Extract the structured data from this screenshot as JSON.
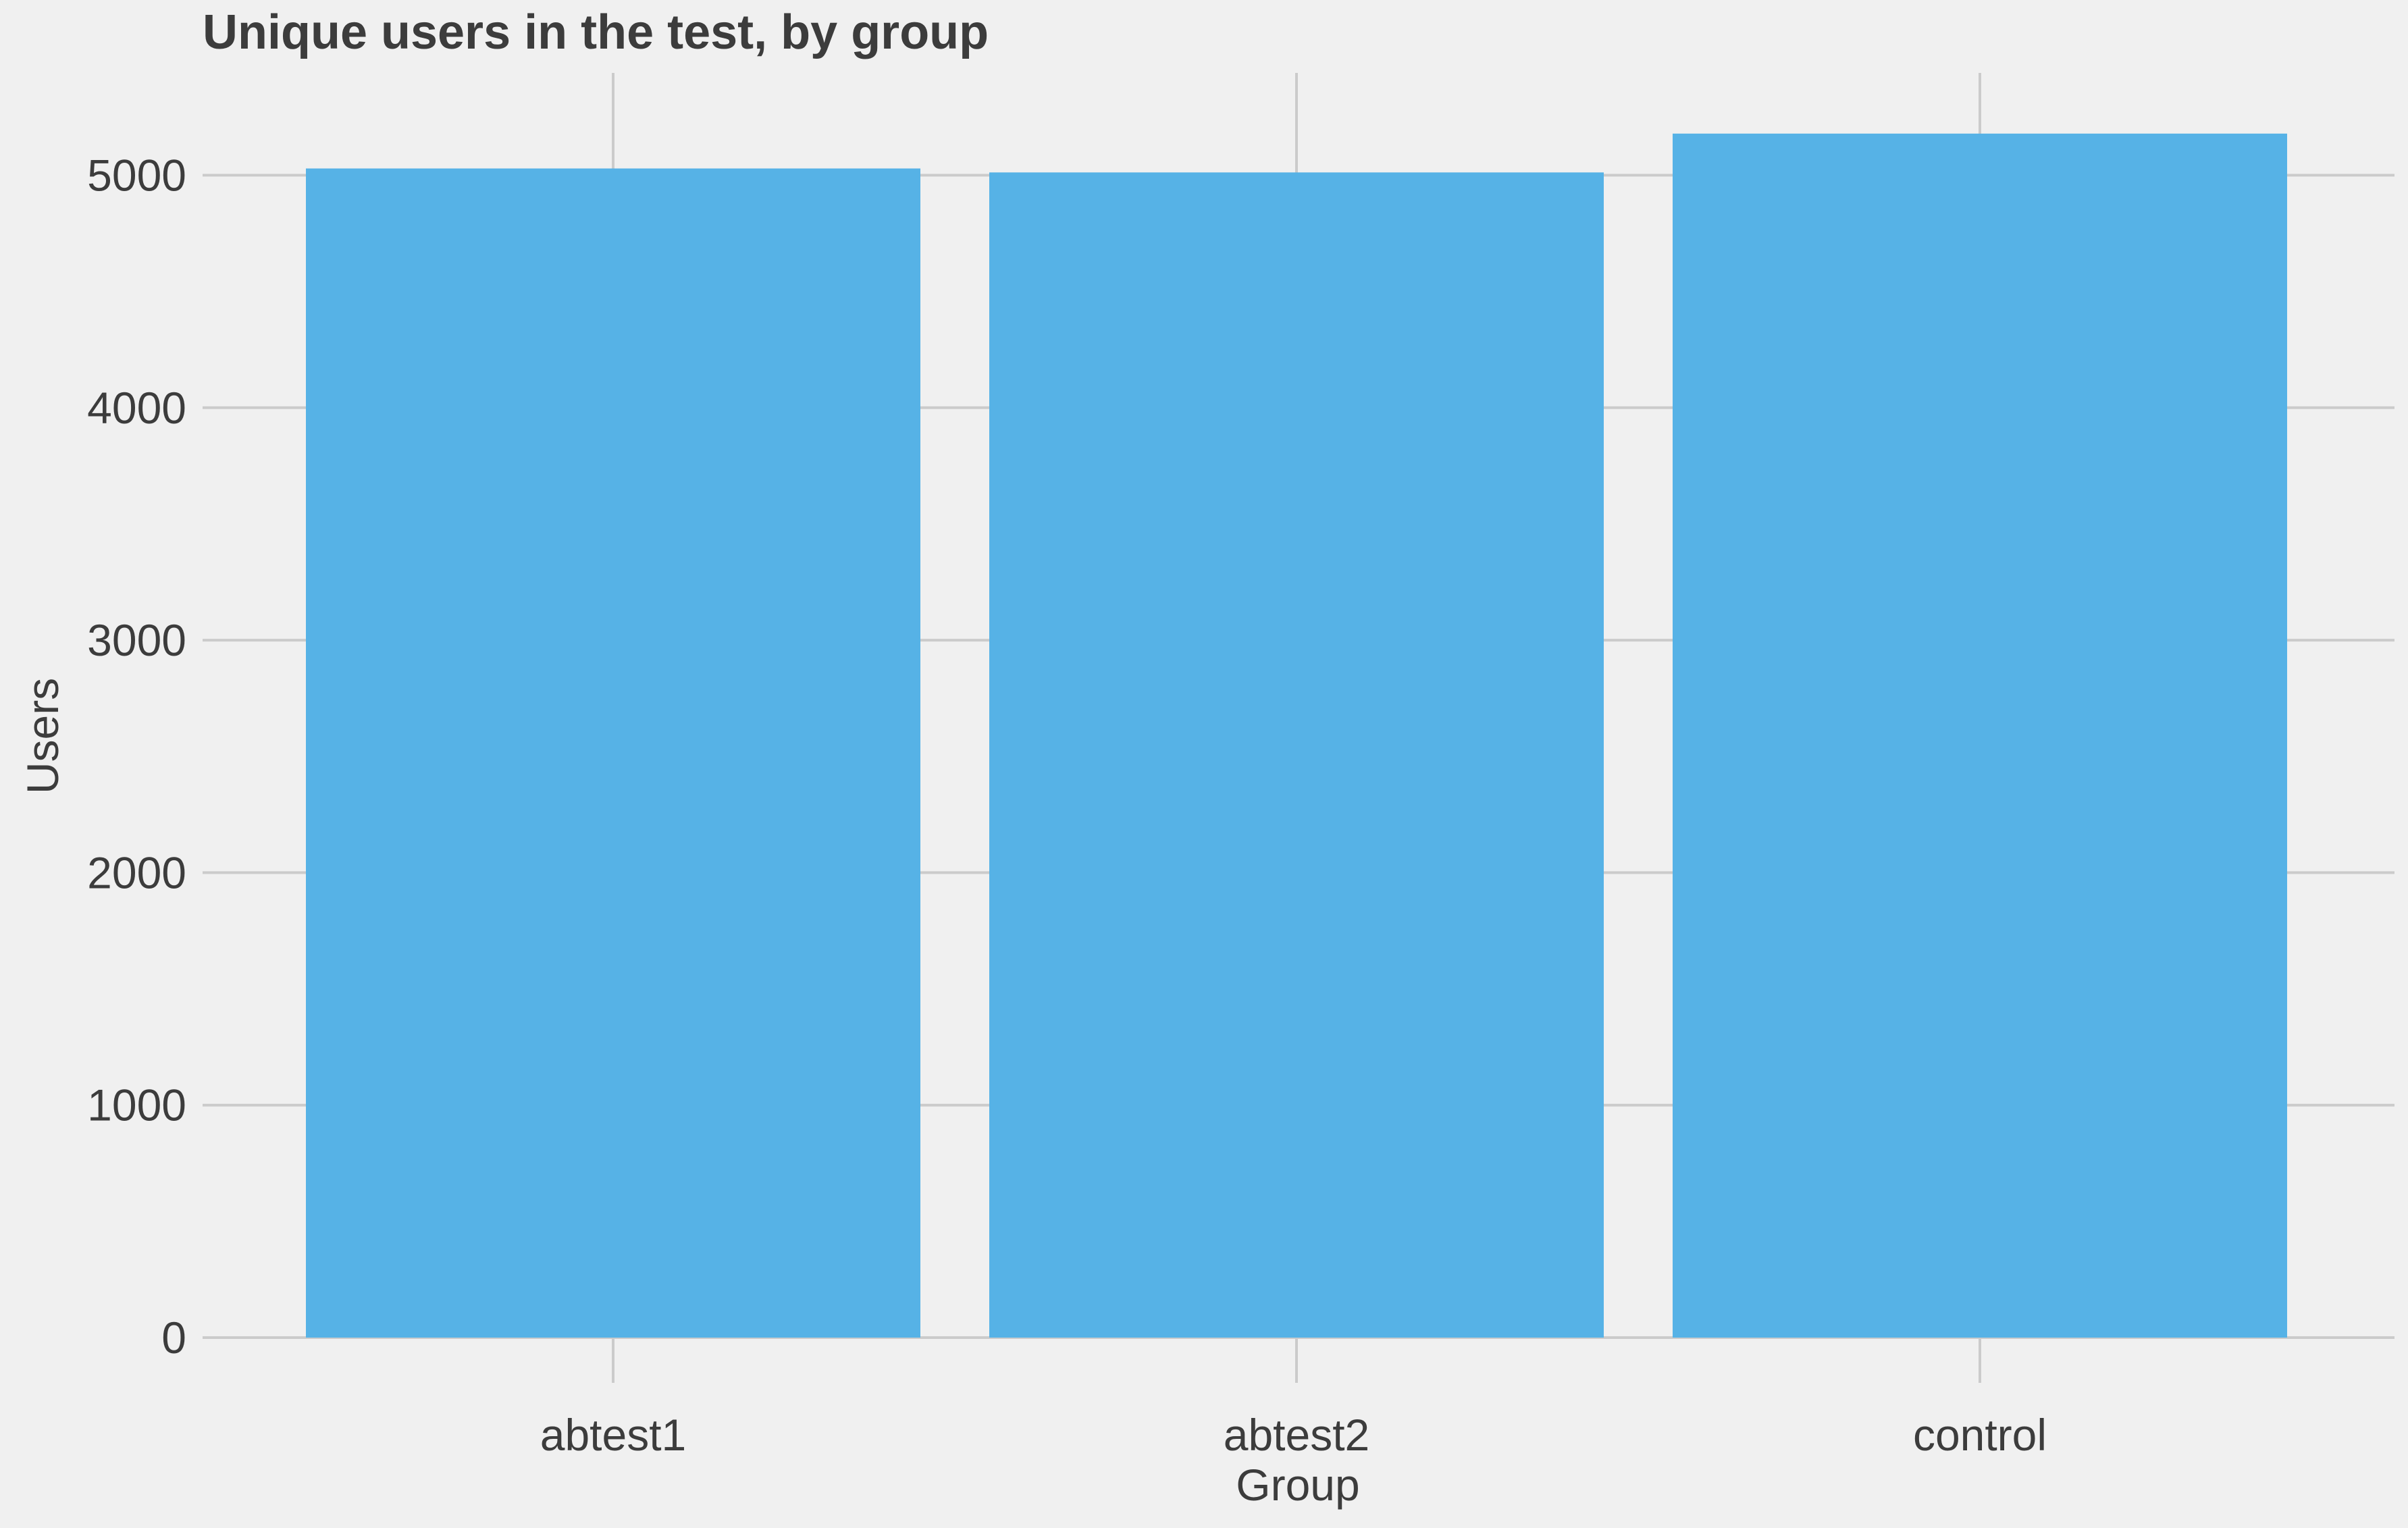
{
  "chart_data": {
    "type": "bar",
    "title": "Unique users in the test, by group",
    "xlabel": "Group",
    "ylabel": "Users",
    "categories": [
      "abtest1",
      "abtest2",
      "control"
    ],
    "values": [
      5029,
      5012,
      5179
    ],
    "ylim": [
      0,
      5440
    ],
    "yticks": [
      0,
      1000,
      2000,
      3000,
      4000,
      5000
    ],
    "ytick_labels": [
      "0",
      "1000",
      "2000",
      "3000",
      "4000",
      "5000"
    ],
    "grid": true,
    "legend": "none",
    "colors": {
      "bar": "#56b2e6",
      "background": "#f0f0f0",
      "grid": "#cbcbcb",
      "text": "#3c3c3c"
    }
  }
}
